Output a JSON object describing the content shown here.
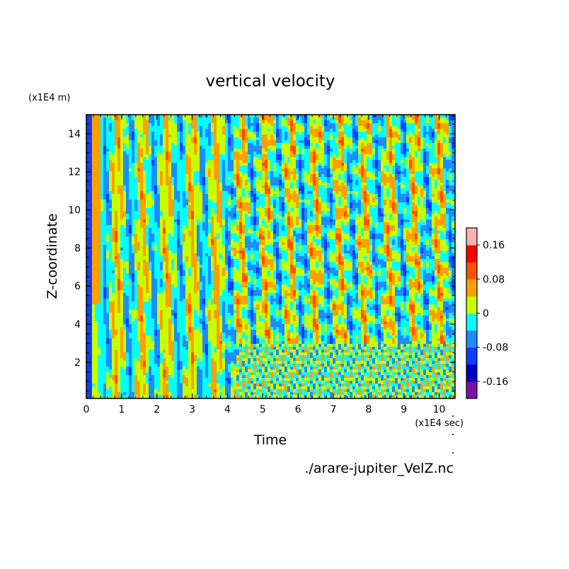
{
  "chart_data": {
    "type": "heatmap",
    "title": "vertical velocity",
    "xlabel": "Time",
    "ylabel": "Z-coordinate",
    "x_unit": "(x1E4 sec)",
    "y_unit": "(x1E4 m)",
    "xlim": [
      0,
      10.45
    ],
    "ylim": [
      0.1,
      15
    ],
    "xticks": [
      0,
      1,
      2,
      3,
      4,
      5,
      6,
      7,
      8,
      9,
      10
    ],
    "xtick_labels": [
      "0",
      "1",
      "2",
      "3",
      "4",
      "5",
      "6",
      "7",
      "8",
      "9",
      "10"
    ],
    "yticks": [
      2,
      4,
      6,
      8,
      10,
      12,
      14
    ],
    "ytick_labels": [
      "2",
      "4",
      "6",
      "8",
      "10",
      "12",
      "14"
    ],
    "grid": false,
    "source_label": "./arare-jupiter_VelZ.nc",
    "colorbar": {
      "levels": [
        -0.2,
        -0.16,
        -0.12,
        -0.08,
        -0.04,
        0,
        0.04,
        0.08,
        0.12,
        0.16,
        0.2
      ],
      "colors": [
        "#7a0fa8",
        "#0000c0",
        "#0f3dff",
        "#1e8cff",
        "#00ffff",
        "#c8ff00",
        "#ffa000",
        "#ff5000",
        "#ff0000",
        "#ffb0b0"
      ],
      "tick_values": [
        0.16,
        0.08,
        0,
        -0.08,
        -0.16
      ],
      "tick_labels": [
        "0.16",
        "0.08",
        "0",
        "-0.08",
        "-0.16"
      ]
    }
  }
}
